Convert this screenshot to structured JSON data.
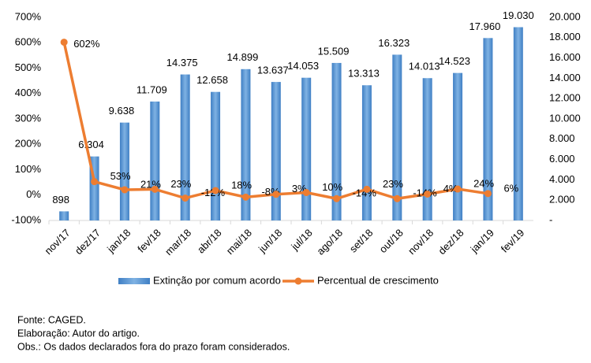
{
  "chart_data": {
    "type": "bar-line",
    "categories": [
      "nov/17",
      "dez/17",
      "jan/18",
      "fev/18",
      "mar/18",
      "abr/18",
      "mai/18",
      "jun/18",
      "jul/18",
      "ago/18",
      "set/18",
      "out/18",
      "nov/18",
      "dez/18",
      "jan/19",
      "fev/19"
    ],
    "series": [
      {
        "name": "Extinção por comum acordo",
        "color": "#5b9bd5",
        "type": "bar",
        "axis": "y2",
        "values": [
          898,
          6304,
          9638,
          11709,
          14375,
          12658,
          14899,
          13637,
          14053,
          15509,
          13313,
          16323,
          14013,
          14523,
          17960,
          19030
        ],
        "value_labels": [
          "898",
          "6.304",
          "9.638",
          "11.709",
          "14.375",
          "12.658",
          "14.899",
          "13.637",
          "14.053",
          "15.509",
          "13.313",
          "16.323",
          "14.013",
          "14.523",
          "17.960",
          "19.030"
        ]
      },
      {
        "name": "Percentual de crescimento",
        "color": "#ed7d31",
        "type": "line",
        "axis": "y",
        "values": [
          602,
          53,
          21,
          23,
          -12,
          18,
          -8,
          3,
          10,
          -14,
          23,
          -14,
          4,
          24,
          6,
          null
        ],
        "value_labels": [
          "602%",
          "53%",
          "21%",
          "23%",
          "-12%",
          "18%",
          "-8%",
          "3%",
          "10%",
          "-14%",
          "23%",
          "-14%",
          "4%",
          "24%",
          "6%",
          null
        ]
      }
    ],
    "ylim": [
      -100,
      700
    ],
    "yticks": [
      {
        "value": -100,
        "label": "-100%"
      },
      {
        "value": 0,
        "label": "0%"
      },
      {
        "value": 100,
        "label": "100%"
      },
      {
        "value": 200,
        "label": "200%"
      },
      {
        "value": 300,
        "label": "300%"
      },
      {
        "value": 400,
        "label": "400%"
      },
      {
        "value": 500,
        "label": "500%"
      },
      {
        "value": 600,
        "label": "600%"
      },
      {
        "value": 700,
        "label": "700%"
      }
    ],
    "y2lim": [
      0,
      20000
    ],
    "y2ticks": [
      {
        "value": 0,
        "label": "-"
      },
      {
        "value": 2000,
        "label": "2.000"
      },
      {
        "value": 4000,
        "label": "4.000"
      },
      {
        "value": 6000,
        "label": "6.000"
      },
      {
        "value": 8000,
        "label": "8.000"
      },
      {
        "value": 10000,
        "label": "10.000"
      },
      {
        "value": 12000,
        "label": "12.000"
      },
      {
        "value": 14000,
        "label": "14.000"
      },
      {
        "value": 16000,
        "label": "16.000"
      },
      {
        "value": 18000,
        "label": "18.000"
      },
      {
        "value": 20000,
        "label": "20.000"
      }
    ],
    "legend": "bottom",
    "notes": [
      "Fonte: CAGED.",
      "Elaboração: Autor do artigo.",
      "Obs.: Os dados declarados fora do prazo foram considerados."
    ]
  }
}
